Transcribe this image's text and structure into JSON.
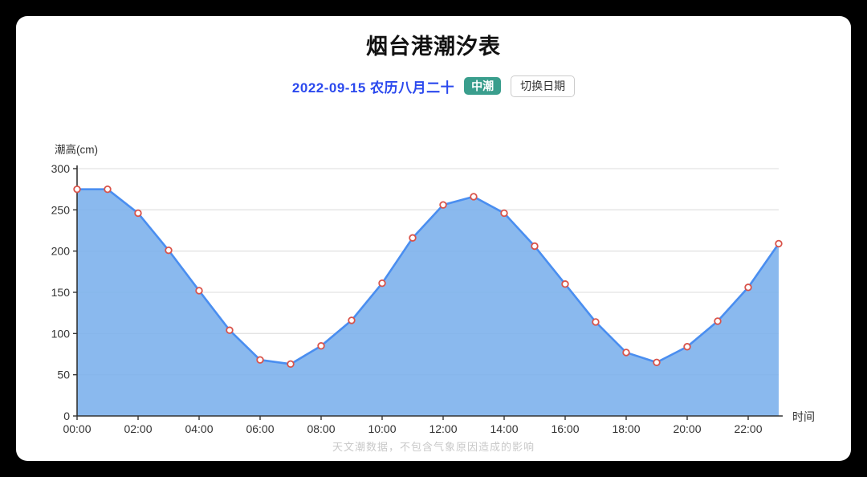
{
  "page": {
    "title": "烟台港潮汐表"
  },
  "header": {
    "date_label": "2022-09-15 农历八月二十",
    "tide_badge": "中潮",
    "switch_date_button": "切换日期"
  },
  "chart_data": {
    "type": "area",
    "title": "烟台港潮汐表",
    "xlabel": "时间",
    "ylabel": "潮高(cm)",
    "x": [
      "00:00",
      "01:00",
      "02:00",
      "03:00",
      "04:00",
      "05:00",
      "06:00",
      "07:00",
      "08:00",
      "09:00",
      "10:00",
      "11:00",
      "12:00",
      "13:00",
      "14:00",
      "15:00",
      "16:00",
      "17:00",
      "18:00",
      "19:00",
      "20:00",
      "21:00",
      "22:00",
      "23:00"
    ],
    "values": [
      275,
      275,
      246,
      201,
      152,
      104,
      68,
      63,
      85,
      116,
      161,
      216,
      256,
      266,
      246,
      206,
      160,
      114,
      77,
      65,
      84,
      115,
      156,
      209
    ],
    "ylim": [
      0,
      300
    ],
    "y_ticks": [
      0,
      50,
      100,
      150,
      200,
      250,
      300
    ],
    "x_label_step": 2,
    "grid": true,
    "legend": "none",
    "colors": {
      "line": "#4a8ef0",
      "fill": "#7aafec",
      "marker_fill": "#ffffff",
      "marker_stroke": "#d9534a",
      "axis": "#333333",
      "grid": "#e3e3e3",
      "tick_text": "#333333"
    }
  },
  "footer": {
    "note": "天文潮数据，不包含气象原因造成的影响"
  }
}
